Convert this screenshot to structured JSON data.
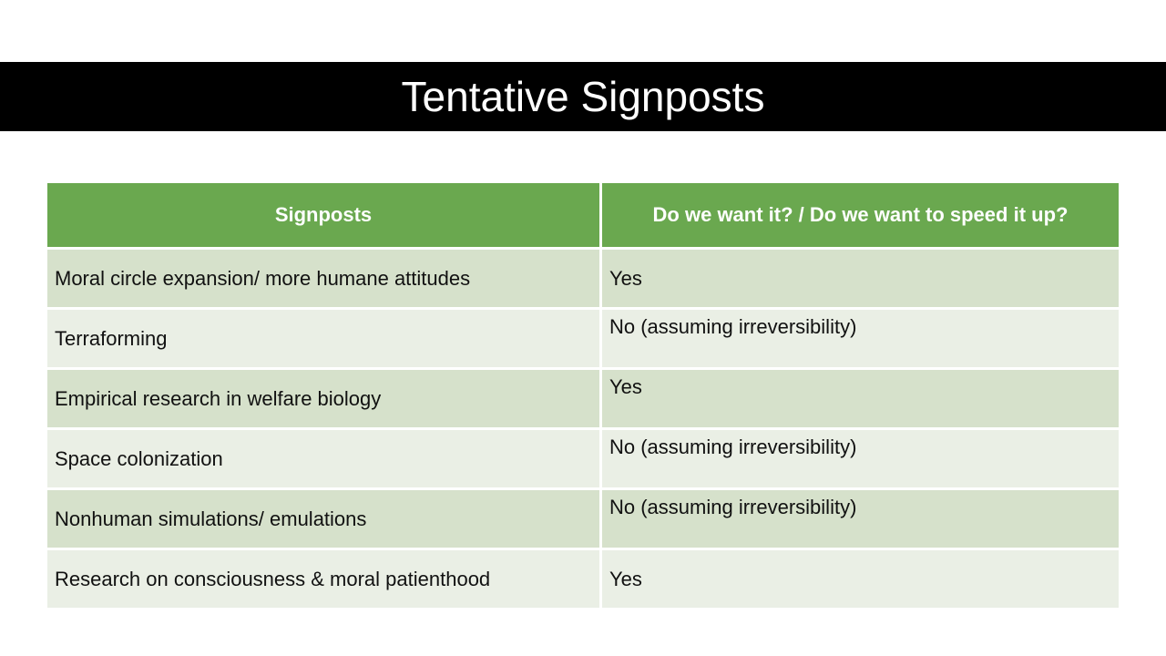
{
  "slide": {
    "title": "Tentative Signposts"
  },
  "table": {
    "columns": [
      {
        "label": "Signposts"
      },
      {
        "label": "Do we want it? / Do we want to speed it up?"
      }
    ],
    "rows": [
      {
        "signpost": "Moral circle expansion/ more humane attitudes",
        "answer": "Yes"
      },
      {
        "signpost": "Terraforming",
        "answer": "No (assuming irreversibility)"
      },
      {
        "signpost": "Empirical research in welfare biology",
        "answer": "Yes"
      },
      {
        "signpost": "Space colonization",
        "answer": "No (assuming irreversibility)"
      },
      {
        "signpost": "Nonhuman simulations/ emulations",
        "answer": "No (assuming irreversibility)"
      },
      {
        "signpost": "Research on consciousness & moral patienthood",
        "answer": "Yes"
      }
    ]
  },
  "theme": {
    "slide_bg": "#ffffff",
    "banner_bg": "#000000",
    "banner_text": "#ffffff",
    "header_bg": "#6aa84f",
    "header_text": "#ffffff",
    "row_band_dark": "#d6e1cb",
    "row_band_light": "#eaefe5",
    "body_text": "#111111",
    "divider": "#ffffff"
  }
}
